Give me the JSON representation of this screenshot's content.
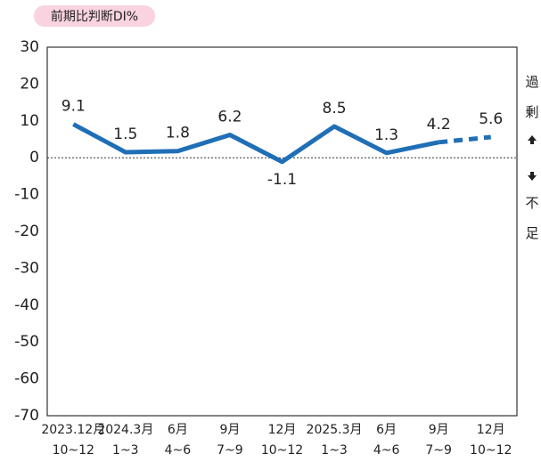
{
  "chart_data": {
    "type": "line",
    "y_axis_label": "前期比判断DI%",
    "categories": [
      [
        "2023.12月",
        "10~12"
      ],
      [
        "2024.3月",
        "1~3"
      ],
      [
        "6月",
        "4~6"
      ],
      [
        "9月",
        "7~9"
      ],
      [
        "12月",
        "10~12"
      ],
      [
        "2025.3月",
        "1~3"
      ],
      [
        "6月",
        "4~6"
      ],
      [
        "9月",
        "7~9"
      ],
      [
        "12月",
        "10~12"
      ]
    ],
    "series": [
      {
        "color": "#1f6fb6",
        "dashed": false,
        "values": [
          9.1,
          1.5,
          1.8,
          6.2,
          -1.1,
          8.5,
          1.3,
          4.2,
          null
        ]
      },
      {
        "color": "#1f6fb6",
        "dashed": true,
        "values": [
          null,
          null,
          null,
          null,
          null,
          null,
          null,
          4.2,
          5.6
        ]
      }
    ],
    "ylim": [
      -70,
      30
    ],
    "yticks": [
      30,
      20,
      10,
      0,
      -10,
      -20,
      -30,
      -40,
      -50,
      -60,
      -70
    ],
    "grid": false,
    "zero_line": true,
    "side_labels": {
      "top": "過剰",
      "bottom": "不足"
    }
  }
}
